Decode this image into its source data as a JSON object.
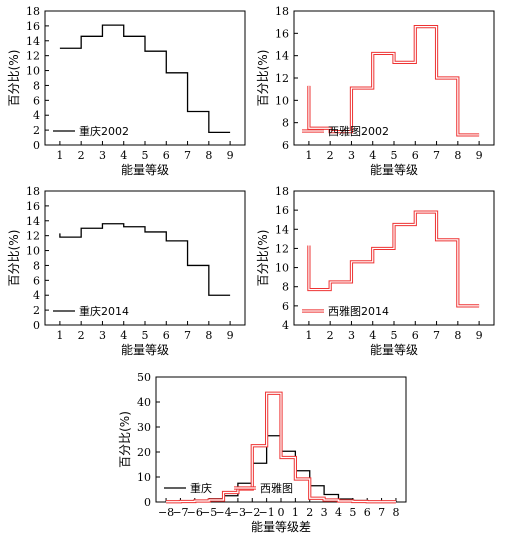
{
  "chart_data": [
    {
      "type": "line",
      "step": true,
      "legend": "重庆2002",
      "legend_position": "bottom-left",
      "xlabel": "能量等级",
      "ylabel": "百分比(%)",
      "xlim": [
        0.3,
        9.7
      ],
      "ylim": [
        0,
        18
      ],
      "xticks": [
        1,
        2,
        3,
        4,
        5,
        6,
        7,
        8,
        9
      ],
      "yticks": [
        0,
        2,
        4,
        6,
        8,
        10,
        12,
        14,
        16,
        18
      ],
      "series": [
        {
          "name": "重庆2002",
          "color": "#000000",
          "double": false,
          "x": [
            1,
            2,
            3,
            4,
            5,
            6,
            7,
            8,
            9
          ],
          "values": [
            13.0,
            14.6,
            16.1,
            14.6,
            12.6,
            9.7,
            4.5,
            1.7,
            1.7
          ]
        }
      ]
    },
    {
      "type": "line",
      "step": true,
      "legend": "西雅图2002",
      "legend_position": "bottom-left",
      "xlabel": "能量等级",
      "ylabel": "百分比(%)",
      "xlim": [
        0.3,
        9.7
      ],
      "ylim": [
        6,
        18
      ],
      "xticks": [
        1,
        2,
        3,
        4,
        5,
        6,
        7,
        8,
        9
      ],
      "yticks": [
        6,
        8,
        10,
        12,
        14,
        16,
        18
      ],
      "series": [
        {
          "name": "西雅图2002",
          "color": "#ee3333",
          "double": true,
          "x": [
            1,
            2,
            3,
            4,
            5,
            6,
            7,
            8,
            9
          ],
          "values": [
            7.5,
            7.2,
            11.1,
            14.2,
            13.4,
            16.6,
            12.0,
            6.9,
            6.9
          ],
          "start_value": 11.3
        }
      ]
    },
    {
      "type": "line",
      "step": true,
      "legend": "重庆2014",
      "legend_position": "bottom-left",
      "xlabel": "能量等级",
      "ylabel": "百分比(%)",
      "xlim": [
        0.3,
        9.7
      ],
      "ylim": [
        0,
        18
      ],
      "xticks": [
        1,
        2,
        3,
        4,
        5,
        6,
        7,
        8,
        9
      ],
      "yticks": [
        0,
        2,
        4,
        6,
        8,
        10,
        12,
        14,
        16,
        18
      ],
      "series": [
        {
          "name": "重庆2014",
          "color": "#000000",
          "double": false,
          "x": [
            1,
            2,
            3,
            4,
            5,
            6,
            7,
            8,
            9
          ],
          "values": [
            11.8,
            13.0,
            13.6,
            13.2,
            12.5,
            11.3,
            8.0,
            4.0,
            4.0
          ],
          "start_value": 12.3
        }
      ]
    },
    {
      "type": "line",
      "step": true,
      "legend": "西雅图2014",
      "legend_position": "bottom-left",
      "xlabel": "能量等级",
      "ylabel": "百分比(%)",
      "xlim": [
        0.3,
        9.7
      ],
      "ylim": [
        4,
        18
      ],
      "xticks": [
        1,
        2,
        3,
        4,
        5,
        6,
        7,
        8,
        9
      ],
      "yticks": [
        4,
        6,
        8,
        10,
        12,
        14,
        16,
        18
      ],
      "series": [
        {
          "name": "西雅图2014",
          "color": "#ee3333",
          "double": true,
          "x": [
            1,
            2,
            3,
            4,
            5,
            6,
            7,
            8,
            9
          ],
          "values": [
            7.7,
            8.5,
            10.6,
            12.0,
            14.5,
            15.8,
            12.9,
            6.0,
            6.0
          ],
          "start_value": 12.3
        }
      ]
    },
    {
      "type": "line",
      "step": true,
      "legend_position": "bottom-left",
      "xlabel": "能量等级差",
      "ylabel": "百分比(%)",
      "xlim": [
        -8.7,
        8.7
      ],
      "ylim": [
        0,
        50
      ],
      "xticks": [
        -8,
        -7,
        -6,
        -5,
        -4,
        -3,
        -2,
        -1,
        0,
        1,
        2,
        3,
        4,
        5,
        6,
        7,
        8
      ],
      "xticklabels": [
        "−8",
        "−7",
        "−6",
        "−5",
        "−4",
        "−3",
        "−2",
        "−1",
        "0",
        "1",
        "2",
        "3",
        "4",
        "5",
        "6",
        "7",
        "8"
      ],
      "yticks": [
        0,
        10,
        20,
        30,
        40,
        50
      ],
      "series": [
        {
          "name": "重庆",
          "color": "#000000",
          "double": false,
          "x": [
            -8,
            -7,
            -6,
            -5,
            -4,
            -3,
            -2,
            -1,
            0,
            1,
            2,
            3,
            4,
            5,
            6,
            7,
            8
          ],
          "values": [
            0.2,
            0.4,
            0.6,
            1.3,
            2.5,
            7.5,
            15.5,
            26.5,
            20.3,
            12.5,
            6.5,
            3.0,
            1.2,
            0.6,
            0.3,
            0.2,
            0.1
          ]
        },
        {
          "name": "西雅图",
          "color": "#ee3333",
          "double": true,
          "x": [
            -8,
            -7,
            -6,
            -5,
            -4,
            -3,
            -2,
            -1,
            0,
            1,
            2,
            3,
            4,
            5,
            6,
            7,
            8
          ],
          "values": [
            0.1,
            0.2,
            0.4,
            0.8,
            3.8,
            5.2,
            22.5,
            43.5,
            17.8,
            9.2,
            1.5,
            0.8,
            0.4,
            0.2,
            0.1,
            0.1,
            0.1
          ]
        }
      ]
    }
  ]
}
